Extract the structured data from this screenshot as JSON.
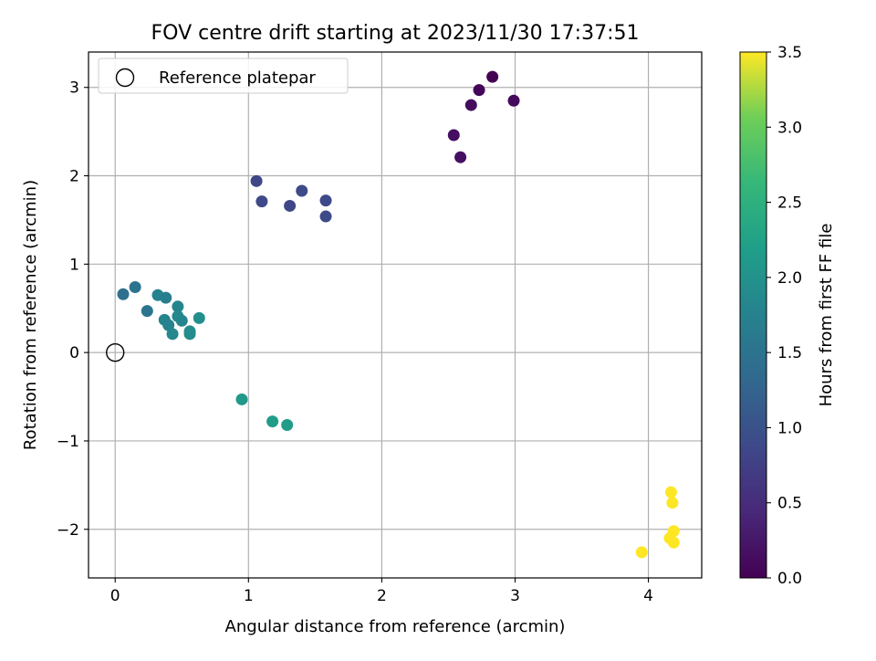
{
  "chart_data": {
    "type": "scatter",
    "title": "FOV centre drift starting at 2023/11/30 17:37:51",
    "xlabel": "Angular distance from reference (arcmin)",
    "ylabel": "Rotation from reference (arcmin)",
    "xlim": [
      -0.2,
      4.4
    ],
    "ylim": [
      -2.55,
      3.4
    ],
    "xticks": [
      0,
      1,
      2,
      3,
      4
    ],
    "xtick_labels": [
      "0",
      "1",
      "2",
      "3",
      "4"
    ],
    "yticks": [
      -2,
      -1,
      0,
      1,
      2,
      3
    ],
    "ytick_labels": [
      "−2",
      "−1",
      "0",
      "1",
      "2",
      "3"
    ],
    "grid": true,
    "legend": {
      "location": "top-left",
      "entries": [
        "Reference platepar"
      ]
    },
    "reference_point": {
      "x": 0,
      "y": 0
    },
    "colorbar": {
      "label": "Hours from first FF file",
      "colormap": "viridis",
      "range": [
        0.0,
        3.5
      ],
      "ticks": [
        0.0,
        0.5,
        1.0,
        1.5,
        2.0,
        2.5,
        3.0,
        3.5
      ],
      "tick_labels": [
        "0.0",
        "0.5",
        "1.0",
        "1.5",
        "2.0",
        "2.5",
        "3.0",
        "3.5"
      ]
    },
    "points": [
      {
        "x": 2.83,
        "y": 3.12,
        "hours": 0.0
      },
      {
        "x": 2.73,
        "y": 2.97,
        "hours": 0.05
      },
      {
        "x": 2.99,
        "y": 2.85,
        "hours": 0.1
      },
      {
        "x": 2.67,
        "y": 2.8,
        "hours": 0.12
      },
      {
        "x": 2.54,
        "y": 2.46,
        "hours": 0.15
      },
      {
        "x": 2.59,
        "y": 2.21,
        "hours": 0.17
      },
      {
        "x": 1.06,
        "y": 1.94,
        "hours": 0.85
      },
      {
        "x": 1.1,
        "y": 1.71,
        "hours": 0.88
      },
      {
        "x": 1.4,
        "y": 1.83,
        "hours": 0.9
      },
      {
        "x": 1.31,
        "y": 1.66,
        "hours": 0.85
      },
      {
        "x": 1.58,
        "y": 1.72,
        "hours": 0.88
      },
      {
        "x": 1.58,
        "y": 1.54,
        "hours": 0.9
      },
      {
        "x": 0.06,
        "y": 0.66,
        "hours": 1.45
      },
      {
        "x": 0.15,
        "y": 0.74,
        "hours": 1.5
      },
      {
        "x": 0.24,
        "y": 0.47,
        "hours": 1.55
      },
      {
        "x": 0.32,
        "y": 0.65,
        "hours": 1.75
      },
      {
        "x": 0.38,
        "y": 0.62,
        "hours": 1.7
      },
      {
        "x": 0.37,
        "y": 0.37,
        "hours": 1.8
      },
      {
        "x": 0.4,
        "y": 0.31,
        "hours": 1.75
      },
      {
        "x": 0.43,
        "y": 0.21,
        "hours": 1.85
      },
      {
        "x": 0.47,
        "y": 0.52,
        "hours": 1.8
      },
      {
        "x": 0.47,
        "y": 0.41,
        "hours": 1.85
      },
      {
        "x": 0.5,
        "y": 0.36,
        "hours": 1.8
      },
      {
        "x": 0.56,
        "y": 0.24,
        "hours": 1.9
      },
      {
        "x": 0.56,
        "y": 0.21,
        "hours": 1.9
      },
      {
        "x": 0.63,
        "y": 0.39,
        "hours": 1.95
      },
      {
        "x": 0.95,
        "y": -0.53,
        "hours": 2.1
      },
      {
        "x": 1.18,
        "y": -0.78,
        "hours": 2.15
      },
      {
        "x": 1.29,
        "y": -0.82,
        "hours": 2.15
      },
      {
        "x": 4.17,
        "y": -1.58,
        "hours": 3.5
      },
      {
        "x": 4.18,
        "y": -1.7,
        "hours": 3.5
      },
      {
        "x": 4.19,
        "y": -2.02,
        "hours": 3.5
      },
      {
        "x": 4.16,
        "y": -2.1,
        "hours": 3.5
      },
      {
        "x": 4.19,
        "y": -2.15,
        "hours": 3.5
      },
      {
        "x": 3.95,
        "y": -2.26,
        "hours": 3.5
      }
    ]
  }
}
